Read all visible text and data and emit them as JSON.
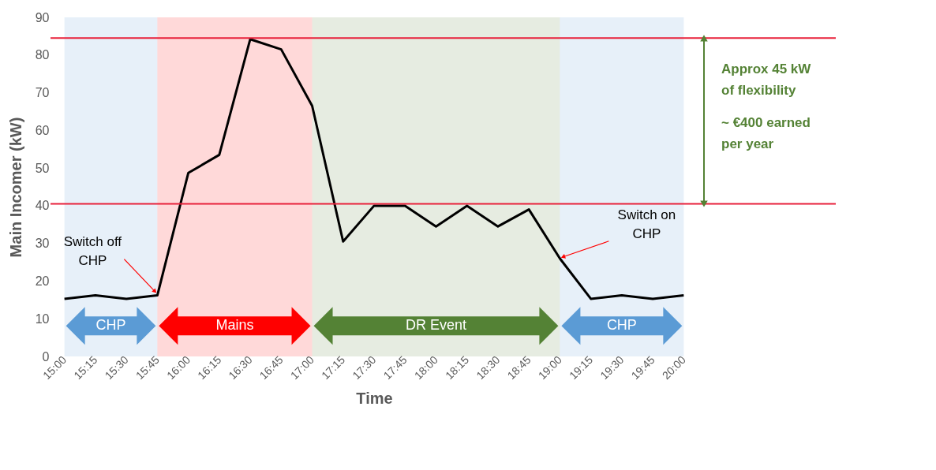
{
  "chart_data": {
    "type": "line",
    "xlabel": "Time",
    "ylabel": "Main Incomer (kW)",
    "categories": [
      "15:00",
      "15:15",
      "15:30",
      "15:45",
      "16:00",
      "16:15",
      "16:30",
      "16:45",
      "17:00",
      "17:15",
      "17:30",
      "17:45",
      "18:00",
      "18:15",
      "18:30",
      "18:45",
      "19:00",
      "19:15",
      "19:30",
      "19:45",
      "20:00"
    ],
    "series": [
      {
        "color": "#000000",
        "values": [
          15.3,
          16.2,
          15.3,
          16.2,
          48.7,
          53.5,
          84.2,
          81.5,
          66.5,
          30.5,
          40,
          40,
          34.5,
          40,
          34.5,
          39,
          26,
          15.3,
          16.2,
          15.3,
          16.2
        ]
      }
    ],
    "ylim": [
      0,
      90
    ],
    "yticks": [
      0,
      10,
      20,
      30,
      40,
      50,
      60,
      70,
      80,
      90
    ],
    "grid": false,
    "marker": "none",
    "line_style": "solid",
    "ref_lines": [
      {
        "axis": "y",
        "value": 84.5,
        "color": "#e8203a"
      },
      {
        "axis": "y",
        "value": 40.5,
        "color": "#e8203a"
      }
    ],
    "bands": [
      {
        "axis": "x",
        "from": "15:00",
        "to": "15:45",
        "label": "CHP",
        "color": "#5b9bd5"
      },
      {
        "axis": "x",
        "from": "15:45",
        "to": "17:00",
        "label": "Mains",
        "color": "#ff0000"
      },
      {
        "axis": "x",
        "from": "17:00",
        "to": "19:00",
        "label": "DR Event",
        "color": "#548235"
      },
      {
        "axis": "x",
        "from": "19:00",
        "to": "20:00",
        "label": "CHP",
        "color": "#5b9bd5"
      }
    ],
    "annotations": [
      {
        "text": "Switch off CHP",
        "x": "15:45",
        "y": 16.2
      },
      {
        "text": "Switch on CHP",
        "x": "19:00",
        "y": 26
      },
      "Approx 45 kW of flexibility",
      "~ €400 earned per year"
    ]
  }
}
